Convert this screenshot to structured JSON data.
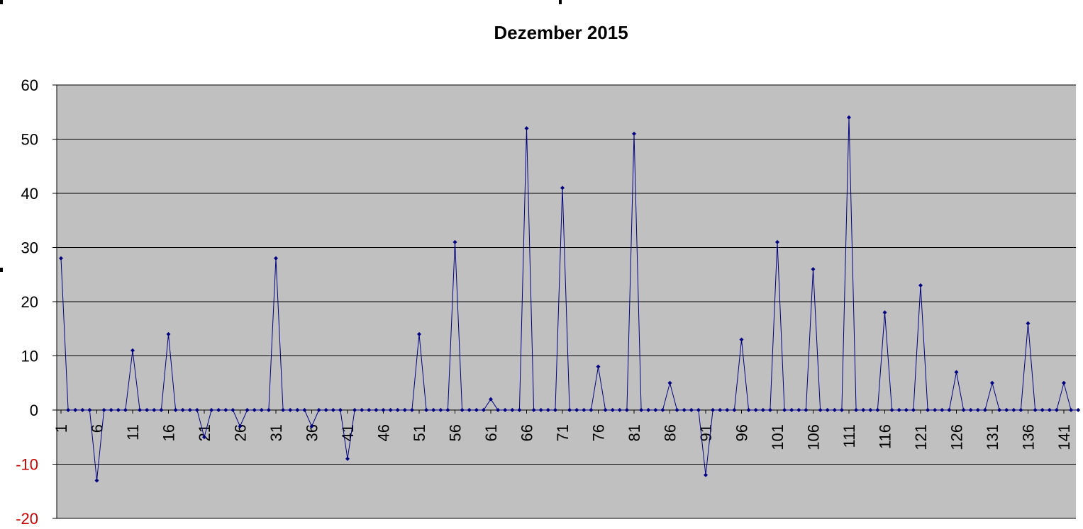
{
  "colors": {
    "plot_background": "#c0c0c0",
    "series_line": "#000080",
    "gridline": "#000000",
    "negative_tick_label": "#cc0000",
    "tick_label": "#000000"
  },
  "chart_data": {
    "type": "line",
    "title": "Dezember 2015",
    "xlabel": "",
    "ylabel": "",
    "ylim": [
      -20,
      60
    ],
    "yticks": [
      -20,
      -10,
      0,
      10,
      20,
      30,
      40,
      50,
      60
    ],
    "grid": true,
    "legend": "none",
    "x_tick_labels": [
      "1",
      "6",
      "11",
      "16",
      "21",
      "26",
      "31",
      "36",
      "41",
      "46",
      "51",
      "56",
      "61",
      "66",
      "71",
      "76",
      "81",
      "86",
      "91",
      "96",
      "101",
      "106",
      "111",
      "116",
      "121",
      "126",
      "131",
      "136",
      "141"
    ],
    "series": [
      {
        "marker": "diamond",
        "values": [
          28,
          0,
          0,
          0,
          0,
          -13,
          0,
          0,
          0,
          0,
          11,
          0,
          0,
          0,
          0,
          14,
          0,
          0,
          0,
          0,
          -5,
          0,
          0,
          0,
          0,
          -3,
          0,
          0,
          0,
          0,
          28,
          0,
          0,
          0,
          0,
          -3,
          0,
          0,
          0,
          0,
          -9,
          0,
          0,
          0,
          0,
          0,
          0,
          0,
          0,
          0,
          14,
          0,
          0,
          0,
          0,
          31,
          0,
          0,
          0,
          0,
          2,
          0,
          0,
          0,
          0,
          52,
          0,
          0,
          0,
          0,
          41,
          0,
          0,
          0,
          0,
          8,
          0,
          0,
          0,
          0,
          51,
          0,
          0,
          0,
          0,
          5,
          0,
          0,
          0,
          0,
          -12,
          0,
          0,
          0,
          0,
          13,
          0,
          0,
          0,
          0,
          31,
          0,
          0,
          0,
          0,
          26,
          0,
          0,
          0,
          0,
          54,
          0,
          0,
          0,
          0,
          18,
          0,
          0,
          0,
          0,
          23,
          0,
          0,
          0,
          0,
          7,
          0,
          0,
          0,
          0,
          5,
          0,
          0,
          0,
          0,
          16,
          0,
          0,
          0,
          0,
          5,
          0,
          0
        ]
      }
    ]
  }
}
